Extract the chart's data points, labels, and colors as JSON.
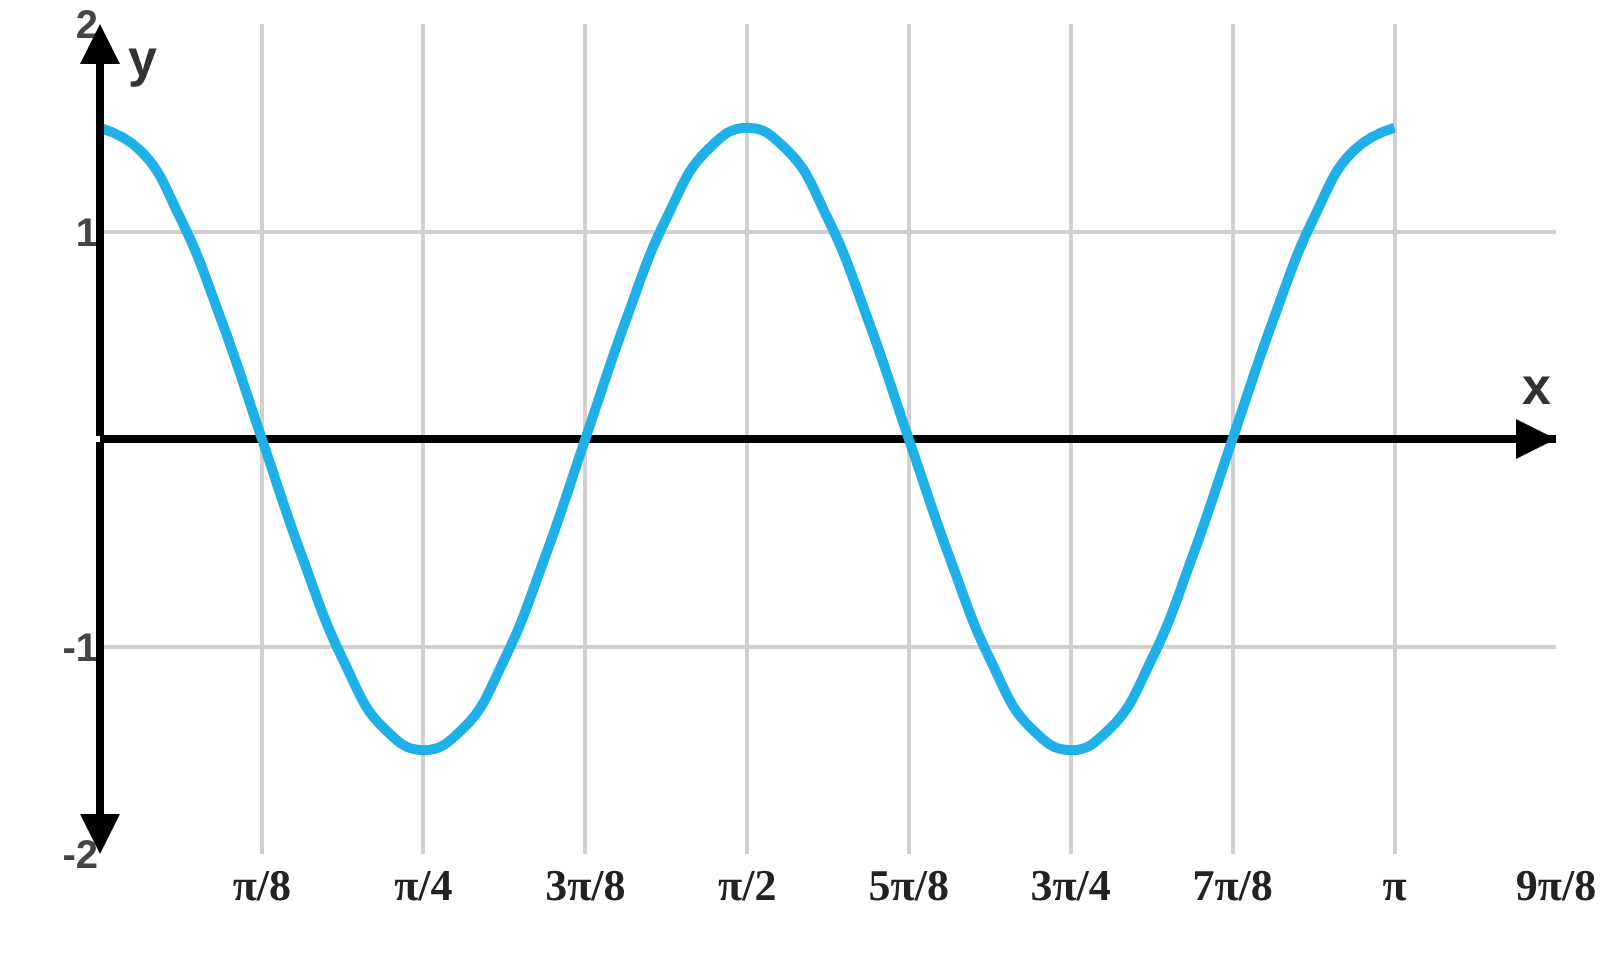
{
  "chart_data": {
    "type": "line",
    "xlabel": "x",
    "ylabel": "y",
    "x": [
      0,
      0.098,
      0.196,
      0.295,
      0.393,
      0.491,
      0.589,
      0.687,
      0.785,
      0.884,
      0.982,
      1.08,
      1.178,
      1.276,
      1.374,
      1.473,
      1.571,
      1.669,
      1.767,
      1.865,
      1.963,
      2.062,
      2.16,
      2.258,
      2.356,
      2.454,
      2.553,
      2.651,
      2.749,
      2.847,
      2.945,
      3.043,
      3.142
    ],
    "series": [
      {
        "color": "#1fb0e8",
        "values": [
          1.5,
          1.39,
          1.06,
          0.57,
          0,
          -0.57,
          -1.06,
          -1.39,
          -1.5,
          -1.39,
          -1.06,
          -0.57,
          0,
          0.57,
          1.06,
          1.39,
          1.5,
          1.39,
          1.06,
          0.57,
          0,
          -0.57,
          -1.06,
          -1.39,
          -1.5,
          -1.39,
          -1.06,
          -0.57,
          0,
          0.57,
          1.06,
          1.39,
          1.5
        ]
      }
    ],
    "xlim": [
      0,
      3.534
    ],
    "xticks": [
      {
        "value": 0.393,
        "label": "π/8"
      },
      {
        "value": 0.785,
        "label": "π/4"
      },
      {
        "value": 1.178,
        "label": "3π/8"
      },
      {
        "value": 1.571,
        "label": "π/2"
      },
      {
        "value": 1.963,
        "label": "5π/8"
      },
      {
        "value": 2.356,
        "label": "3π/4"
      },
      {
        "value": 2.749,
        "label": "7π/8"
      },
      {
        "value": 3.142,
        "label": "π"
      },
      {
        "value": 3.534,
        "label": "9π/8"
      }
    ],
    "ylim": [
      -2,
      2
    ],
    "yticks": [
      -2,
      -1,
      {
        "value": 0,
        "label": null
      },
      1,
      2
    ],
    "grid": true,
    "marker": "none",
    "line_style": "solid"
  }
}
